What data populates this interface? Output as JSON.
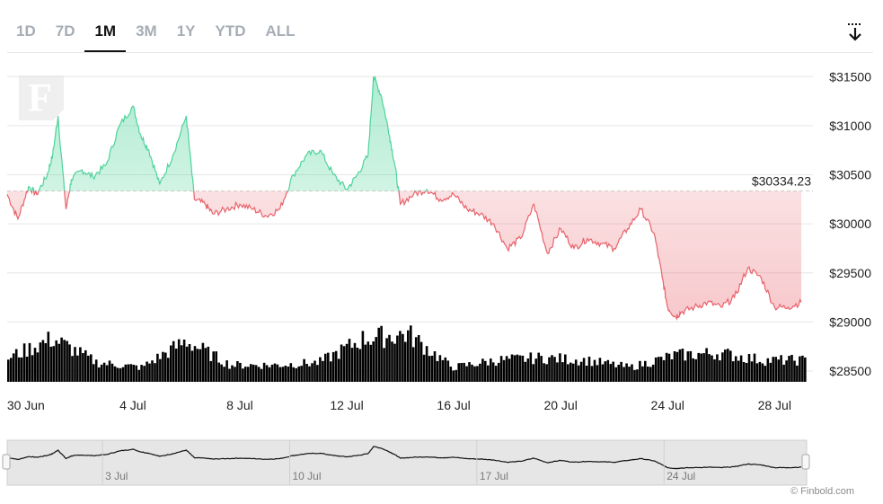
{
  "tabs": [
    {
      "label": "1D",
      "active": false
    },
    {
      "label": "7D",
      "active": false
    },
    {
      "label": "1M",
      "active": true
    },
    {
      "label": "3M",
      "active": false
    },
    {
      "label": "1Y",
      "active": false
    },
    {
      "label": "YTD",
      "active": false
    },
    {
      "label": "ALL",
      "active": false
    }
  ],
  "icons": {
    "download": "download-icon",
    "logo": "finbold-logo"
  },
  "logo_letter": "F",
  "credit": "© Finbold.com",
  "colors": {
    "up": "#4ed39a",
    "down": "#e8626b",
    "volume": "#000000",
    "grid": "#e6e6e6",
    "active_tab": "#111111",
    "inactive_tab": "#a7adb6"
  },
  "chart_data": {
    "type": "line",
    "baseline": {
      "value": 30334.23,
      "label": "$30334.23"
    },
    "y_axis": {
      "ticks": [
        28500,
        29000,
        29500,
        30000,
        30500,
        31000,
        31500
      ],
      "tick_labels": [
        "$28500",
        "$29000",
        "$29500",
        "$30000",
        "$30500",
        "$31000",
        "$31500"
      ],
      "range": [
        28500,
        31750
      ],
      "position": "right"
    },
    "x_axis": {
      "ticks": [
        0,
        4,
        8,
        12,
        16,
        20,
        24,
        28
      ],
      "tick_labels": [
        "30 Jun",
        "4 Jul",
        "8 Jul",
        "12 Jul",
        "16 Jul",
        "20 Jul",
        "24 Jul",
        "28 Jul"
      ],
      "range": [
        -0.7,
        29.2
      ]
    },
    "grid": true,
    "series": [
      {
        "day": [
          -0.7,
          -0.3,
          0.1,
          0.4,
          0.8,
          1.0,
          1.2,
          1.5,
          1.7,
          2.1,
          2.5,
          3.0,
          3.5,
          4.0,
          4.3,
          4.6,
          5.0,
          5.5,
          6.0,
          6.3,
          6.7,
          7.0,
          7.5,
          8.0,
          8.5,
          9.0,
          9.5,
          10.0,
          10.5,
          11.0,
          11.5,
          12.0,
          12.4,
          12.8,
          13.0,
          13.3,
          13.6,
          13.8,
          14.0,
          14.5,
          15.0,
          15.5,
          16.0,
          16.5,
          17.0,
          17.5,
          18.0,
          18.5,
          19.0,
          19.5,
          20.0,
          20.5,
          21.0,
          21.5,
          22.0,
          22.5,
          23.0,
          23.5,
          23.8,
          24.0,
          24.3,
          24.5,
          25.0,
          25.5,
          26.0,
          26.5,
          27.0,
          27.5,
          28.0,
          28.5,
          29.0
        ],
        "price": [
          30300,
          30050,
          30380,
          30300,
          30500,
          30700,
          31100,
          30150,
          30450,
          30550,
          30480,
          30600,
          31000,
          31200,
          30900,
          30750,
          30400,
          30700,
          31100,
          30250,
          30200,
          30100,
          30150,
          30200,
          30150,
          30080,
          30150,
          30500,
          30700,
          30750,
          30500,
          30350,
          30500,
          30700,
          31500,
          31300,
          30900,
          30600,
          30200,
          30300,
          30350,
          30250,
          30300,
          30150,
          30100,
          30000,
          29750,
          29850,
          30200,
          29700,
          29950,
          29750,
          29850,
          29800,
          29750,
          29950,
          30150,
          29900,
          29450,
          29150,
          29050,
          29100,
          29150,
          29200,
          29150,
          29250,
          29550,
          29450,
          29150,
          29150,
          29200
        ]
      }
    ],
    "volume": {
      "peaks_days": [
        1.2,
        7.3,
        13.6,
        24.3
      ],
      "level_relative": [
        0.5,
        0.9,
        0.4,
        0.3,
        0.85,
        0.35,
        0.35,
        0.4,
        0.9,
        1.0,
        0.3,
        0.45,
        0.5,
        0.45,
        0.3,
        0.55,
        0.6,
        0.45,
        0.45
      ]
    },
    "navigator": {
      "tick_labels": [
        "3 Jul",
        "10 Jul",
        "17 Jul",
        "24 Jul"
      ],
      "ticks": [
        3,
        10,
        17,
        24
      ]
    }
  }
}
